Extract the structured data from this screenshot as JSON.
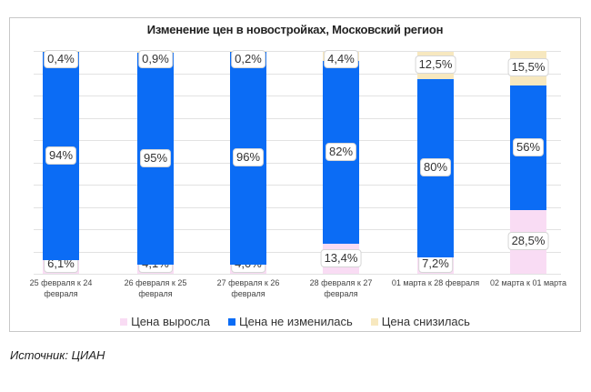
{
  "chart_data": {
    "type": "bar",
    "stacked": true,
    "title": "Изменение цен в новостройках, Московский регион",
    "xlabel": "",
    "ylabel": "",
    "ylim": [
      0,
      100
    ],
    "grid": true,
    "legend_position": "bottom",
    "categories": [
      "25 февраля к 24 февраля",
      "26 февраля к 25 февраля",
      "27 февраля к 26 февраля",
      "28 февраля к 27 февраля",
      "01 марта к 28 февраля",
      "02 марта к 01 марта"
    ],
    "series": [
      {
        "name": "Цена выросла",
        "color": "#f9dcf4",
        "values": [
          6.1,
          4.1,
          4.0,
          13.4,
          7.2,
          28.5
        ],
        "labels": [
          "6,1%",
          "4,1%",
          "4,0%",
          "13,4%",
          "7,2%",
          "28,5%"
        ]
      },
      {
        "name": "Цена не изменилась",
        "color": "#0b6cf5",
        "values": [
          94,
          95,
          96,
          82,
          80,
          56
        ],
        "labels": [
          "94%",
          "95%",
          "96%",
          "82%",
          "80%",
          "56%"
        ]
      },
      {
        "name": "Цена снизилась",
        "color": "#f7e8bf",
        "values": [
          0.4,
          0.9,
          0.2,
          4.4,
          12.5,
          15.5
        ],
        "labels": [
          "0,4%",
          "0,9%",
          "0,2%",
          "4,4%",
          "12,5%",
          "15,5%"
        ]
      }
    ]
  },
  "categories_display": [
    [
      "25 февраля к 24",
      "февраля"
    ],
    [
      "26 февраля к 25",
      "февраля"
    ],
    [
      "27 февраля к 26",
      "февраля"
    ],
    [
      "28 февраля к 27",
      "февраля"
    ],
    [
      "01 марта к 28 февраля",
      ""
    ],
    [
      "02 марта к 01 марта",
      ""
    ]
  ],
  "source": "Источник: ЦИАН"
}
